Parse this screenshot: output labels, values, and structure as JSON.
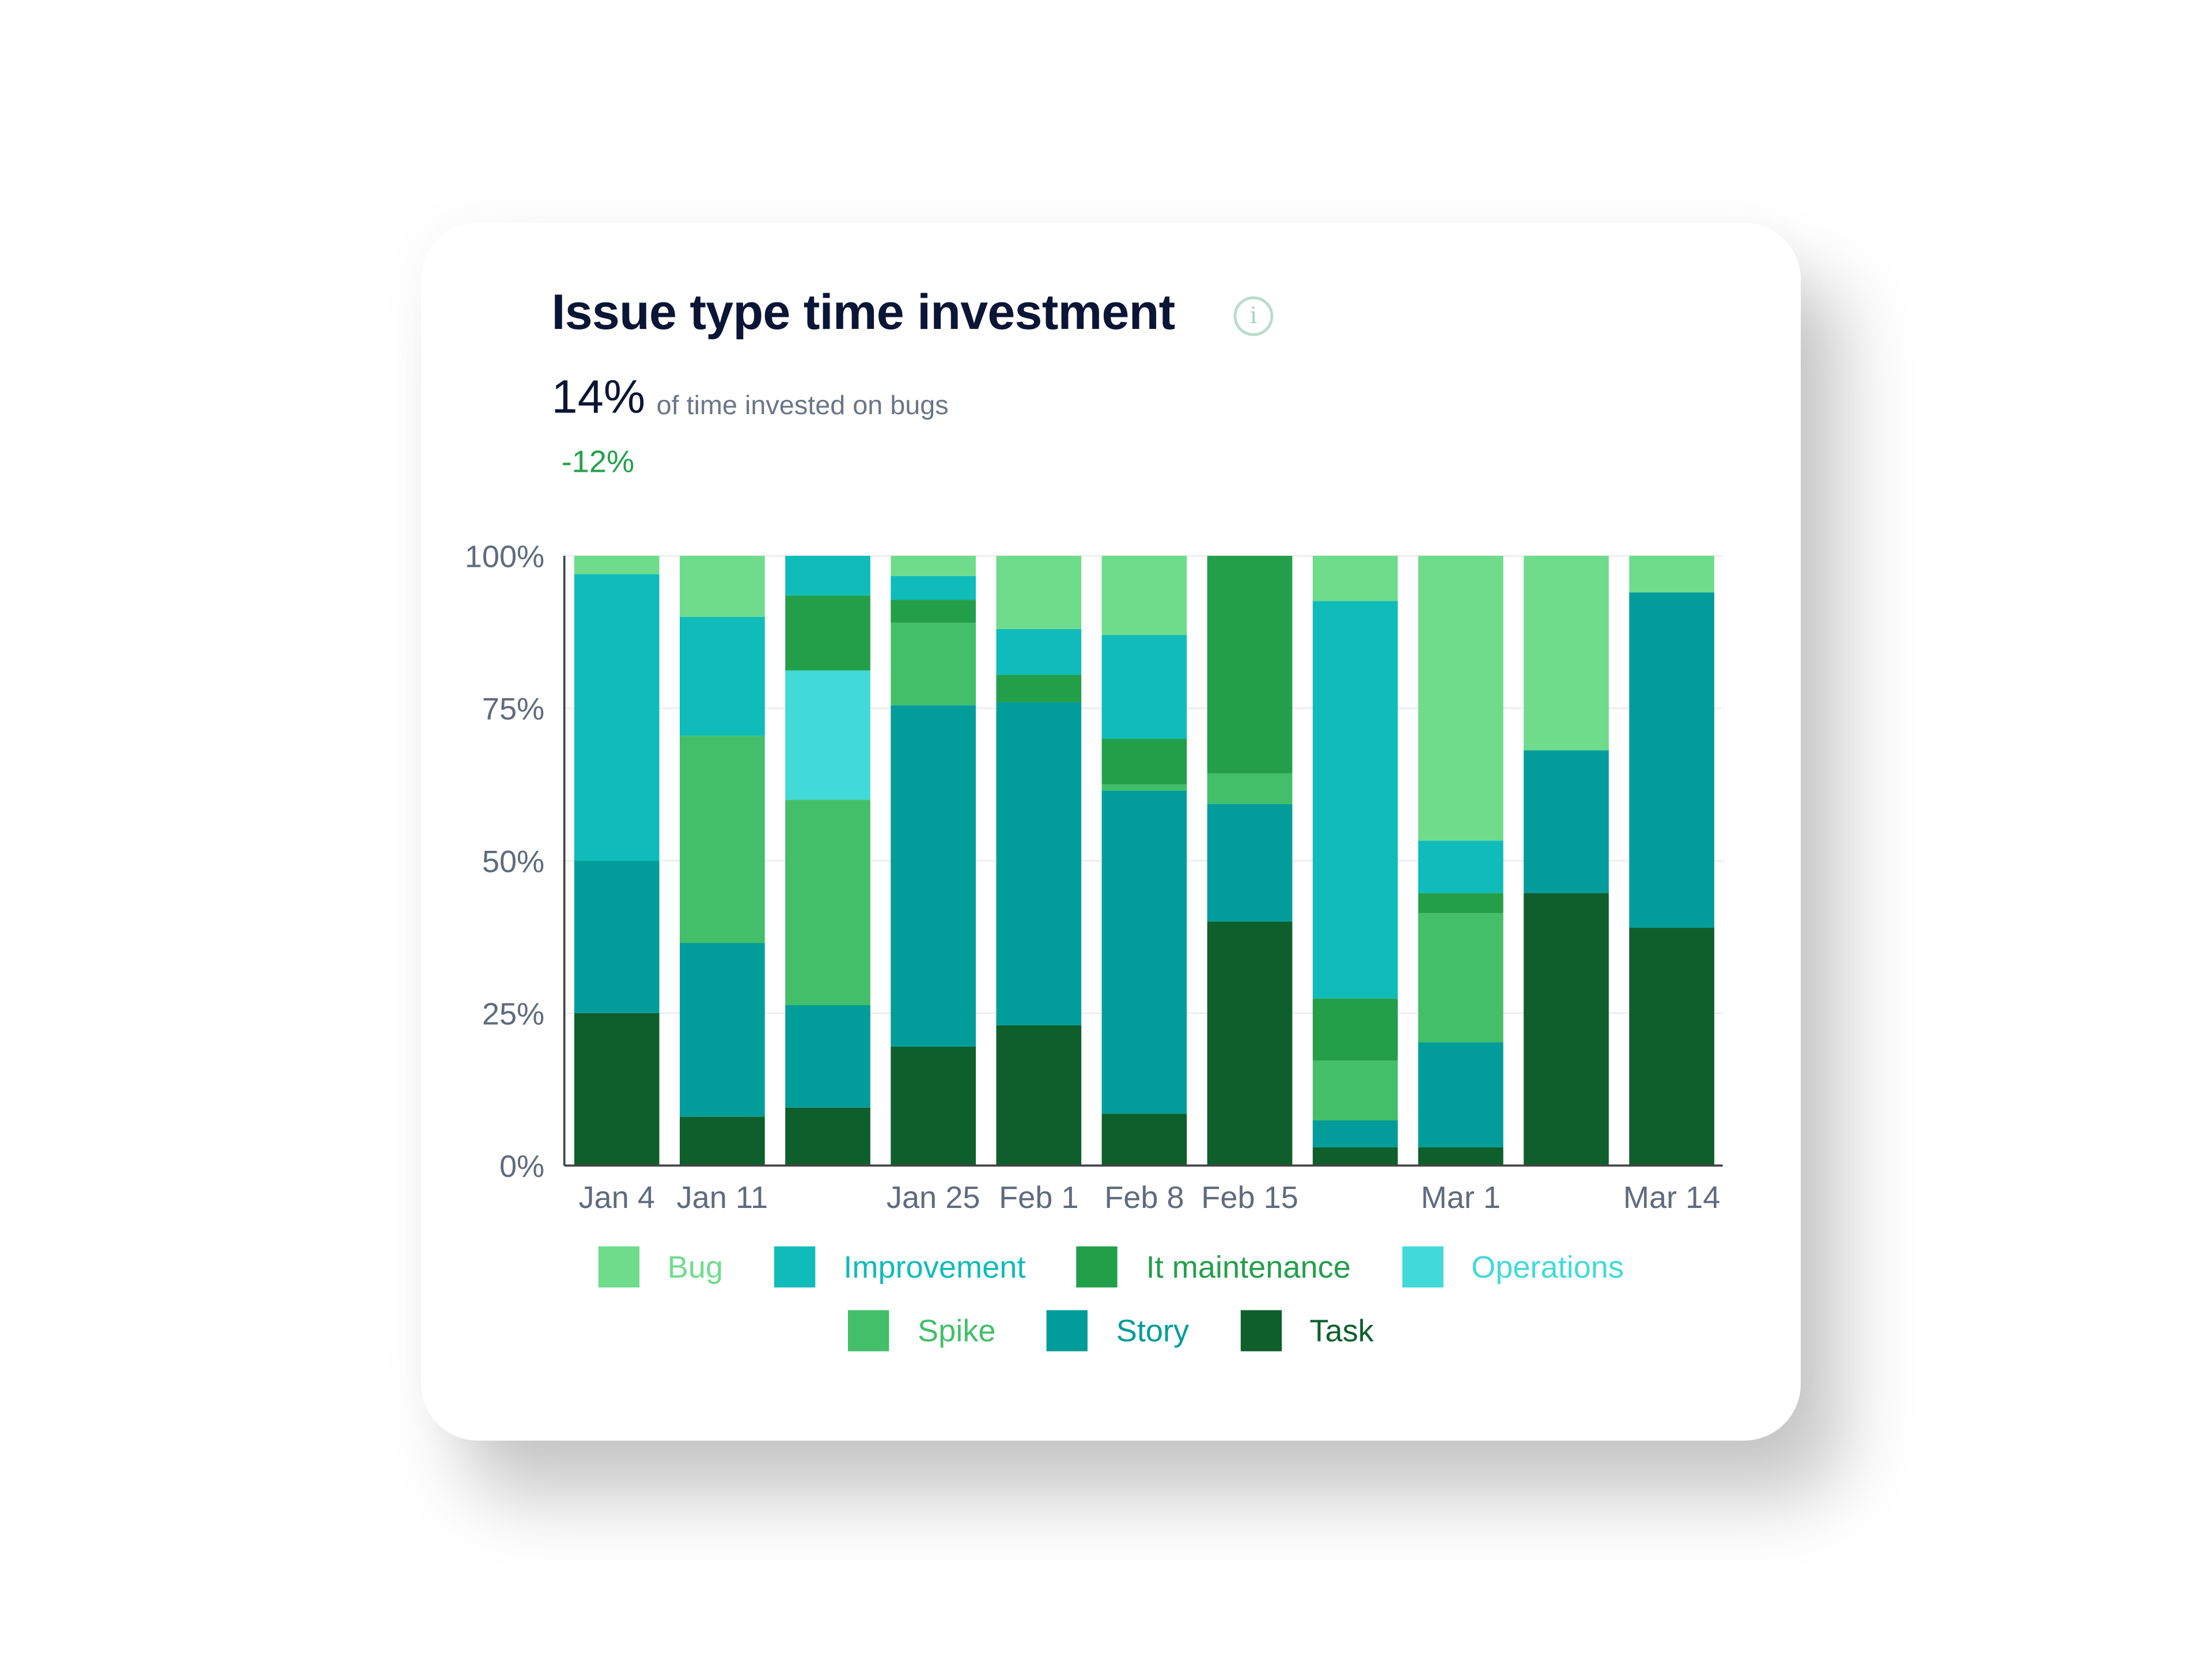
{
  "header": {
    "title": "Issue type time investment",
    "info_icon": "info-circle-icon",
    "metric_value": "14%",
    "metric_label": "of time invested on bugs",
    "delta": "-12%",
    "delta_color": "#22a24a"
  },
  "chart_data": {
    "type": "bar",
    "stacked": true,
    "categories": [
      "Jan 4",
      "Jan 11",
      "",
      "Jan 25",
      "Feb 1",
      "Feb 8",
      "Feb 15",
      "",
      "Mar 1",
      "",
      "Mar 14"
    ],
    "ylim": [
      0,
      100
    ],
    "yticks": [
      "0%",
      "25%",
      "50%",
      "75%",
      "100%"
    ],
    "ytick_values": [
      0,
      25,
      50,
      75,
      100
    ],
    "grid": true,
    "legend_position": "bottom",
    "series": [
      {
        "name": "Task",
        "color": "#0e5f2c",
        "values": [
          25,
          8,
          9.5,
          19.5,
          23,
          8.5,
          40,
          3,
          3,
          44.7,
          39
        ]
      },
      {
        "name": "Story",
        "color": "#029d9a",
        "values": [
          25,
          28.5,
          16.8,
          56,
          53,
          53,
          19.3,
          4.4,
          17.2,
          23.4,
          55
        ]
      },
      {
        "name": "Spike",
        "color": "#43bf69",
        "values": [
          0,
          34,
          33.7,
          13.5,
          0,
          1,
          5,
          9.8,
          21.2,
          0,
          0
        ]
      },
      {
        "name": "Operations",
        "color": "#42dad8",
        "values": [
          0,
          0,
          21.2,
          0,
          0,
          0,
          0,
          0,
          0,
          0,
          0
        ]
      },
      {
        "name": "It maintenance",
        "color": "#239f4a",
        "values": [
          0,
          0,
          12.3,
          3.8,
          4.5,
          7.5,
          35.7,
          10.2,
          3.3,
          0,
          0
        ]
      },
      {
        "name": "Improvement",
        "color": "#0fbcba",
        "values": [
          47,
          19.5,
          6.5,
          3.9,
          7.5,
          17,
          0,
          65.2,
          8.6,
          0,
          0
        ]
      },
      {
        "name": "Bug",
        "color": "#6fdc8c",
        "values": [
          3,
          10,
          0,
          3.3,
          12,
          13,
          0,
          7.4,
          46.7,
          31.9,
          6
        ]
      }
    ]
  },
  "legend": [
    {
      "name": "Bug",
      "color": "#6fdc8c"
    },
    {
      "name": "Improvement",
      "color": "#0fbcba"
    },
    {
      "name": "It maintenance",
      "color": "#239f4a"
    },
    {
      "name": "Operations",
      "color": "#42dad8"
    },
    {
      "name": "Spike",
      "color": "#43bf69"
    },
    {
      "name": "Story",
      "color": "#029d9a"
    },
    {
      "name": "Task",
      "color": "#0e5f2c"
    }
  ]
}
